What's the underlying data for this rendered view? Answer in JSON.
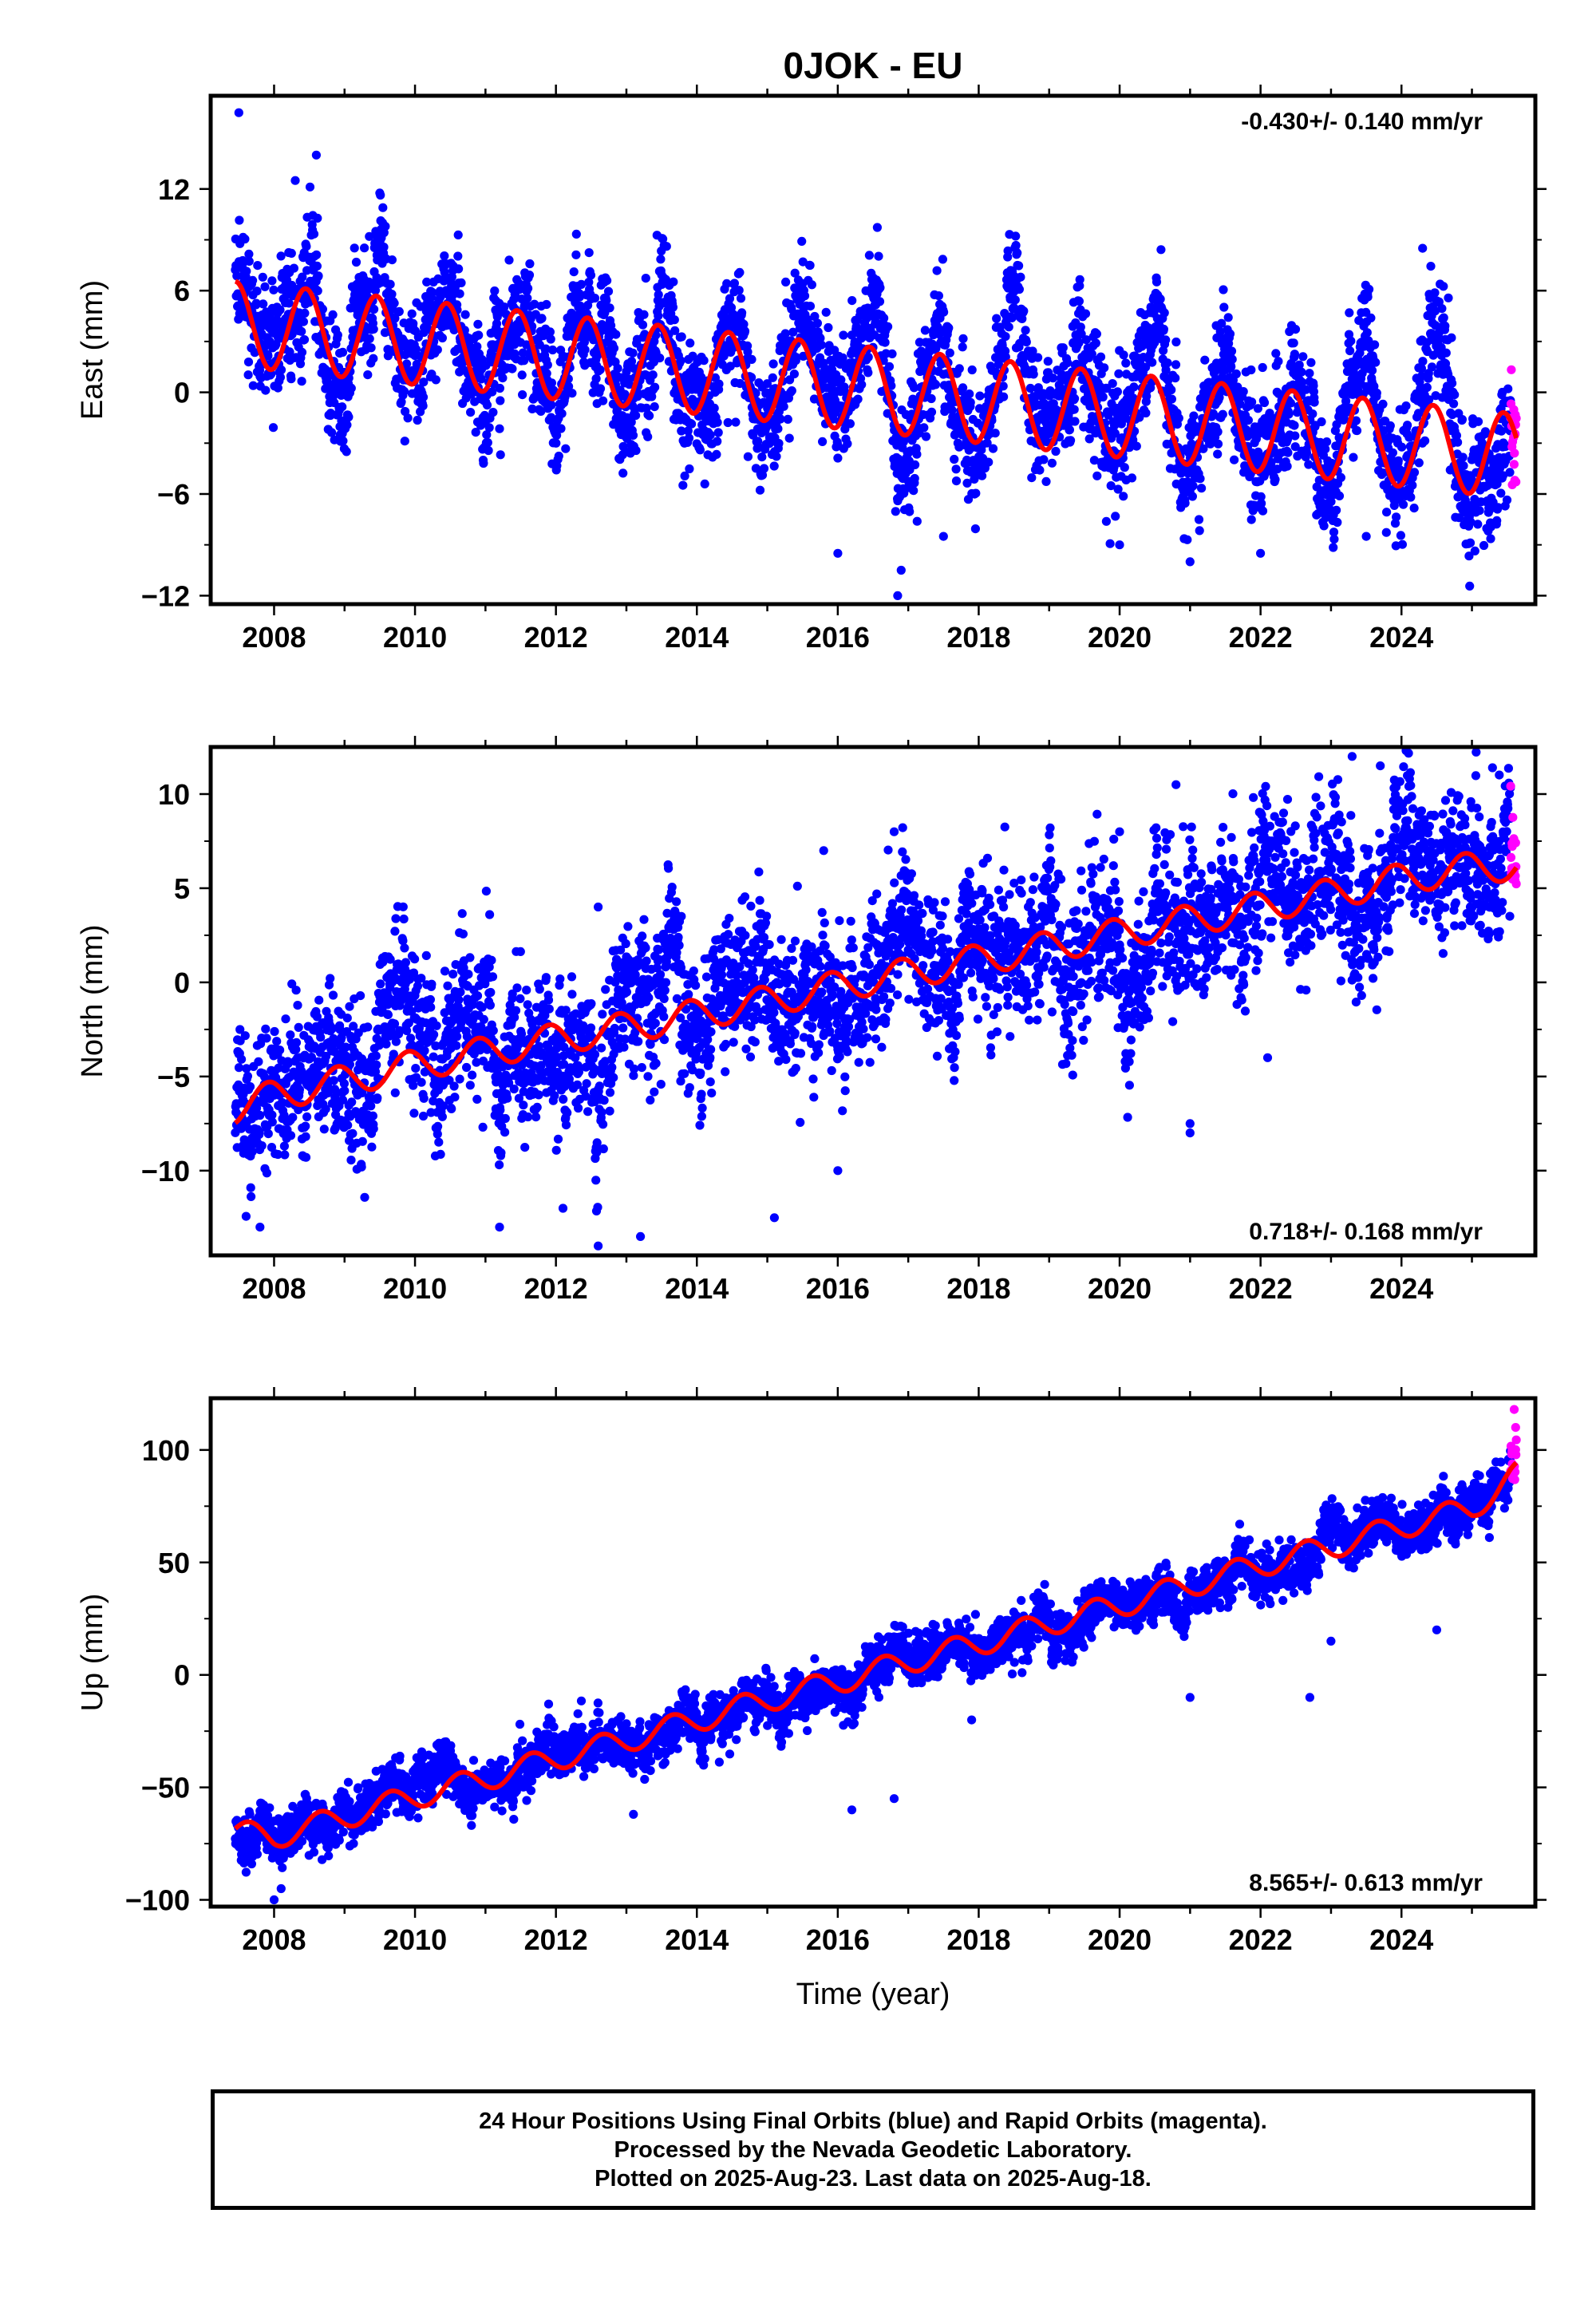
{
  "title": "0JOK - EU",
  "colors": {
    "final_orbits": "#0000ff",
    "rapid_orbits": "#ff00ff",
    "model_fit": "#ff0000"
  },
  "footer": {
    "line1": "24 Hour Positions Using Final Orbits (blue) and Rapid Orbits (magenta).",
    "line2": "Processed by the Nevada Geodetic Laboratory.",
    "line3": "Plotted on 2025-Aug-23. Last data on 2025-Aug-18."
  },
  "chart_data": [
    {
      "type": "scatter",
      "panel": "east",
      "ylabel": "East (mm)",
      "xlabel": "",
      "xlim": [
        2007.1,
        2025.9
      ],
      "ylim": [
        -12.5,
        17.5
      ],
      "xticks": [
        2008,
        2010,
        2012,
        2014,
        2016,
        2018,
        2020,
        2022,
        2024
      ],
      "yticks": [
        -12,
        -6,
        0,
        6,
        12
      ],
      "ytick_labels": [
        "−12",
        "−6",
        "0",
        "6",
        "12"
      ],
      "rate_label": "-0.430+/- 0.140 mm/yr",
      "rate_position": "top-right",
      "data_start": 2007.45,
      "data_end": 2025.63,
      "rapid_start": 2025.55,
      "rate_mm_per_yr": -0.43,
      "annual_amplitude_mm": 2.5,
      "annual_peak_year_fraction": 0.4,
      "scatter_mm": 1.6,
      "fit": {
        "name": "model fit",
        "x": [
          2007.45,
          2008.0,
          2008.5,
          2009.0,
          2009.5,
          2010.0,
          2010.5,
          2011.0,
          2011.5,
          2012.0,
          2012.5,
          2013.0,
          2013.5,
          2014.0,
          2014.5,
          2015.0,
          2015.5,
          2016.0,
          2016.5,
          2017.0,
          2017.5,
          2018.0,
          2018.5,
          2019.0,
          2019.5,
          2020.0,
          2020.5,
          2021.0,
          2021.5,
          2022.0,
          2022.5,
          2023.0,
          2023.5,
          2024.0,
          2024.5,
          2025.0,
          2025.63
        ],
        "y": [
          7.0,
          1.8,
          6.8,
          1.3,
          6.3,
          0.9,
          5.9,
          0.5,
          5.5,
          0.0,
          5.0,
          -0.3,
          4.6,
          -0.8,
          4.2,
          -1.2,
          3.8,
          -1.7,
          3.4,
          -2.1,
          3.0,
          -2.5,
          2.6,
          -3.0,
          2.1,
          -3.4,
          1.7,
          -3.8,
          1.3,
          -4.3,
          0.9,
          -4.8,
          0.4,
          -5.2,
          0.0,
          -5.6,
          -3.0
        ]
      },
      "outliers": [
        [
          2007.5,
          16.5
        ],
        [
          2008.3,
          12.5
        ],
        [
          2008.6,
          14.0
        ],
        [
          2016.0,
          -9.5
        ],
        [
          2016.85,
          -12.0
        ],
        [
          2016.9,
          -10.5
        ],
        [
          2017.5,
          -8.5
        ],
        [
          2020.0,
          -9.0
        ],
        [
          2021.0,
          -10.0
        ],
        [
          2022.0,
          -9.5
        ],
        [
          2023.5,
          -8.5
        ],
        [
          2024.3,
          8.5
        ],
        [
          2015.6,
          7.5
        ]
      ]
    },
    {
      "type": "scatter",
      "panel": "north",
      "ylabel": "North (mm)",
      "xlabel": "",
      "xlim": [
        2007.1,
        2025.9
      ],
      "ylim": [
        -14.5,
        12.5
      ],
      "xticks": [
        2008,
        2010,
        2012,
        2014,
        2016,
        2018,
        2020,
        2022,
        2024
      ],
      "yticks": [
        -10,
        -5,
        0,
        5,
        10
      ],
      "ytick_labels": [
        "−10",
        "−5",
        "0",
        "5",
        "10"
      ],
      "rate_label": "0.718+/- 0.168 mm/yr",
      "rate_position": "bottom-right",
      "data_start": 2007.45,
      "data_end": 2025.63,
      "rapid_start": 2025.55,
      "rate_mm_per_yr": 0.718,
      "annual_amplitude_mm": 0.9,
      "annual_peak_year_fraction": 0.9,
      "scatter_mm": 1.7,
      "fit": {
        "name": "model fit",
        "x": [
          2007.45,
          2008.0,
          2009.0,
          2010.0,
          2011.0,
          2012.0,
          2013.0,
          2014.0,
          2015.0,
          2016.0,
          2017.0,
          2018.0,
          2019.0,
          2020.0,
          2021.0,
          2022.0,
          2023.0,
          2024.0,
          2025.0,
          2025.63
        ],
        "y": [
          -6.7,
          -6.0,
          -5.2,
          -4.4,
          -3.7,
          -3.0,
          -2.4,
          -1.7,
          -1.0,
          -0.2,
          0.5,
          1.2,
          1.9,
          2.6,
          3.3,
          4.0,
          4.7,
          5.5,
          6.1,
          6.2
        ]
      },
      "outliers": [
        [
          2007.8,
          -13.0
        ],
        [
          2011.2,
          -13.0
        ],
        [
          2012.1,
          -12.0
        ],
        [
          2012.6,
          -14.0
        ],
        [
          2013.2,
          -13.5
        ],
        [
          2015.1,
          -12.5
        ],
        [
          2016.0,
          -10.0
        ],
        [
          2021.0,
          -8.0
        ],
        [
          2021.0,
          -7.5
        ],
        [
          2022.1,
          -4.0
        ],
        [
          2012.6,
          4.0
        ],
        [
          2015.8,
          7.0
        ],
        [
          2016.8,
          8.0
        ],
        [
          2020.0,
          8.0
        ],
        [
          2023.3,
          12.0
        ],
        [
          2023.7,
          11.5
        ],
        [
          2020.8,
          10.5
        ]
      ]
    },
    {
      "type": "scatter",
      "panel": "up",
      "ylabel": "Up (mm)",
      "xlabel": "Time (year)",
      "xlim": [
        2007.1,
        2025.9
      ],
      "ylim": [
        -103,
        123
      ],
      "xticks": [
        2008,
        2010,
        2012,
        2014,
        2016,
        2018,
        2020,
        2022,
        2024
      ],
      "yticks": [
        -100,
        -50,
        0,
        50,
        100
      ],
      "ytick_labels": [
        "−100",
        "−50",
        "0",
        "50",
        "100"
      ],
      "rate_label": "8.565+/- 0.613 mm/yr",
      "rate_position": "bottom-right",
      "data_start": 2007.45,
      "data_end": 2025.63,
      "rapid_start": 2025.55,
      "rate_mm_per_yr": 8.565,
      "annual_amplitude_mm": 6.0,
      "annual_peak_year_fraction": 0.65,
      "scatter_mm": 5.0,
      "fit": {
        "name": "model fit",
        "x": [
          2007.45,
          2008.0,
          2009.0,
          2010.0,
          2011.0,
          2012.0,
          2013.0,
          2014.0,
          2015.0,
          2016.0,
          2017.0,
          2018.0,
          2019.0,
          2020.0,
          2021.0,
          2022.0,
          2023.0,
          2024.0,
          2025.0,
          2025.63
        ],
        "y": [
          -70,
          -72,
          -63,
          -54,
          -46,
          -37,
          -29,
          -20,
          -11,
          -3,
          6,
          14,
          23,
          31,
          40,
          49,
          57,
          66,
          74,
          89
        ]
      },
      "outliers": [
        [
          2008.0,
          -100
        ],
        [
          2008.1,
          -95
        ],
        [
          2013.1,
          -62
        ],
        [
          2016.2,
          -60
        ],
        [
          2016.8,
          -55
        ],
        [
          2017.9,
          -20
        ],
        [
          2021.0,
          -10
        ],
        [
          2022.7,
          -10
        ],
        [
          2023.0,
          15
        ],
        [
          2024.5,
          20
        ],
        [
          2025.6,
          118
        ],
        [
          2025.62,
          110
        ]
      ]
    }
  ]
}
